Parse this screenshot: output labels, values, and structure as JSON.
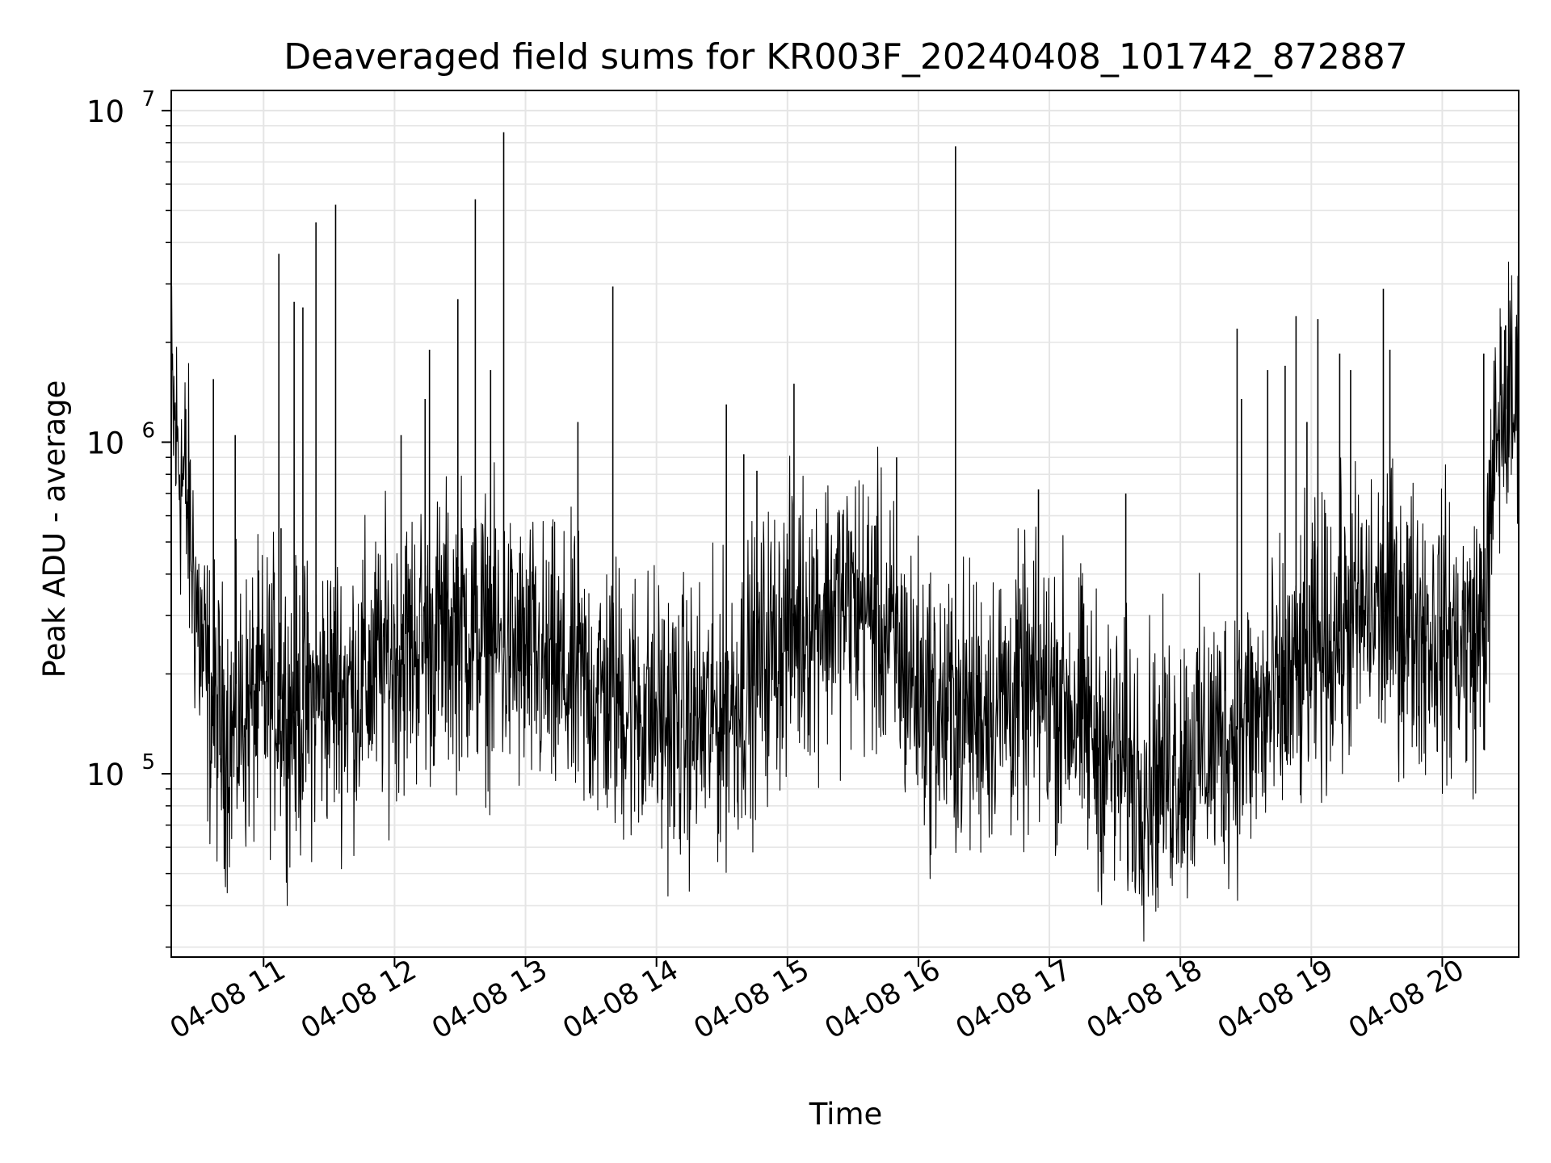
{
  "chart_data": {
    "type": "line",
    "title": "Deaveraged field sums for KR003F_20240408_101742_872887",
    "xlabel": "Time",
    "ylabel": "Peak ADU - average",
    "yscale": "log",
    "ylim": [
      28000,
      11500000
    ],
    "xlim": [
      "2024-04-08 10:17:42",
      "2024-04-08 20:35:00"
    ],
    "x_ticks": [
      {
        "value": "2024-04-08 11:00",
        "label": "04-08 11"
      },
      {
        "value": "2024-04-08 12:00",
        "label": "04-08 12"
      },
      {
        "value": "2024-04-08 13:00",
        "label": "04-08 13"
      },
      {
        "value": "2024-04-08 14:00",
        "label": "04-08 14"
      },
      {
        "value": "2024-04-08 15:00",
        "label": "04-08 15"
      },
      {
        "value": "2024-04-08 16:00",
        "label": "04-08 16"
      },
      {
        "value": "2024-04-08 17:00",
        "label": "04-08 17"
      },
      {
        "value": "2024-04-08 18:00",
        "label": "04-08 18"
      },
      {
        "value": "2024-04-08 19:00",
        "label": "04-08 19"
      },
      {
        "value": "2024-04-08 20:00",
        "label": "04-08 20"
      }
    ],
    "y_ticks": [
      {
        "value": 100000,
        "base": "10",
        "exp": "5"
      },
      {
        "value": 1000000,
        "base": "10",
        "exp": "6"
      },
      {
        "value": 10000000,
        "base": "10",
        "exp": "7"
      }
    ],
    "grid": true,
    "line_color": "#000000",
    "grid_color": "#e5e5e5",
    "series": [
      {
        "x": [
          "2024-04-08 10:18",
          "2024-04-08 10:20",
          "2024-04-08 10:22",
          "2024-04-08 10:25",
          "2024-04-08 10:28",
          "2024-04-08 10:31",
          "2024-04-08 10:35",
          "2024-04-08 10:40",
          "2024-04-08 10:45",
          "2024-04-08 10:50",
          "2024-04-08 10:55",
          "2024-04-08 11:00",
          "2024-04-08 11:05",
          "2024-04-08 11:10",
          "2024-04-08 11:15",
          "2024-04-08 11:20",
          "2024-04-08 11:25",
          "2024-04-08 11:30",
          "2024-04-08 11:40",
          "2024-04-08 11:50",
          "2024-04-08 12:00",
          "2024-04-08 12:10",
          "2024-04-08 12:20",
          "2024-04-08 12:30",
          "2024-04-08 12:40",
          "2024-04-08 12:50",
          "2024-04-08 13:00",
          "2024-04-08 13:10",
          "2024-04-08 13:20",
          "2024-04-08 13:30",
          "2024-04-08 13:40",
          "2024-04-08 13:50",
          "2024-04-08 14:00",
          "2024-04-08 14:10",
          "2024-04-08 14:20",
          "2024-04-08 14:30",
          "2024-04-08 14:40",
          "2024-04-08 14:50",
          "2024-04-08 15:00",
          "2024-04-08 15:10",
          "2024-04-08 15:20",
          "2024-04-08 15:30",
          "2024-04-08 15:40",
          "2024-04-08 15:50",
          "2024-04-08 16:00",
          "2024-04-08 16:10",
          "2024-04-08 16:20",
          "2024-04-08 16:30",
          "2024-04-08 16:40",
          "2024-04-08 16:50",
          "2024-04-08 17:00",
          "2024-04-08 17:10",
          "2024-04-08 17:20",
          "2024-04-08 17:30",
          "2024-04-08 17:40",
          "2024-04-08 17:50",
          "2024-04-08 18:00",
          "2024-04-08 18:10",
          "2024-04-08 18:20",
          "2024-04-08 18:30",
          "2024-04-08 18:40",
          "2024-04-08 18:50",
          "2024-04-08 19:00",
          "2024-04-08 19:10",
          "2024-04-08 19:20",
          "2024-04-08 19:30",
          "2024-04-08 19:40",
          "2024-04-08 19:50",
          "2024-04-08 20:00",
          "2024-04-08 20:10",
          "2024-04-08 20:15",
          "2024-04-08 20:20",
          "2024-04-08 20:25",
          "2024-04-08 20:30",
          "2024-04-08 20:34"
        ],
        "y": [
          1300000,
          1000000,
          850000,
          650000,
          400000,
          250000,
          170000,
          140000,
          130000,
          150000,
          160000,
          170000,
          180000,
          160000,
          150000,
          160000,
          170000,
          180000,
          180000,
          200000,
          230000,
          250000,
          260000,
          280000,
          260000,
          240000,
          220000,
          200000,
          190000,
          180000,
          170000,
          160000,
          150000,
          140000,
          140000,
          150000,
          180000,
          230000,
          270000,
          300000,
          320000,
          330000,
          300000,
          230000,
          180000,
          150000,
          150000,
          160000,
          170000,
          170000,
          180000,
          160000,
          130000,
          110000,
          100000,
          100000,
          110000,
          120000,
          130000,
          140000,
          150000,
          180000,
          220000,
          260000,
          290000,
          310000,
          300000,
          280000,
          260000,
          250000,
          250000,
          300000,
          1100000,
          1300000,
          1250000
        ]
      }
    ],
    "spikes": [
      {
        "x": "2024-04-08 10:37",
        "y": 1550000
      },
      {
        "x": "2024-04-08 10:47",
        "y": 1050000
      },
      {
        "x": "2024-04-08 11:07",
        "y": 3700000
      },
      {
        "x": "2024-04-08 11:08",
        "y": 550000
      },
      {
        "x": "2024-04-08 11:14",
        "y": 2650000
      },
      {
        "x": "2024-04-08 11:18",
        "y": 2550000
      },
      {
        "x": "2024-04-08 11:24",
        "y": 4600000
      },
      {
        "x": "2024-04-08 11:33",
        "y": 5200000
      },
      {
        "x": "2024-04-08 12:03",
        "y": 1050000
      },
      {
        "x": "2024-04-08 12:14",
        "y": 1350000
      },
      {
        "x": "2024-04-08 12:16",
        "y": 1900000
      },
      {
        "x": "2024-04-08 12:29",
        "y": 2700000
      },
      {
        "x": "2024-04-08 12:37",
        "y": 5400000
      },
      {
        "x": "2024-04-08 12:44",
        "y": 1650000
      },
      {
        "x": "2024-04-08 12:50",
        "y": 8600000
      },
      {
        "x": "2024-04-08 13:24",
        "y": 1150000
      },
      {
        "x": "2024-04-08 13:40",
        "y": 2950000
      },
      {
        "x": "2024-04-08 14:32",
        "y": 1300000
      },
      {
        "x": "2024-04-08 14:40",
        "y": 920000
      },
      {
        "x": "2024-04-08 14:46",
        "y": 820000
      },
      {
        "x": "2024-04-08 15:03",
        "y": 1500000
      },
      {
        "x": "2024-04-08 15:40",
        "y": 560000
      },
      {
        "x": "2024-04-08 15:50",
        "y": 900000
      },
      {
        "x": "2024-04-08 16:17",
        "y": 7800000
      },
      {
        "x": "2024-04-08 16:55",
        "y": 720000
      },
      {
        "x": "2024-04-08 17:35",
        "y": 700000
      },
      {
        "x": "2024-04-08 18:26",
        "y": 2200000
      },
      {
        "x": "2024-04-08 18:28",
        "y": 1350000
      },
      {
        "x": "2024-04-08 18:40",
        "y": 1650000
      },
      {
        "x": "2024-04-08 18:48",
        "y": 1700000
      },
      {
        "x": "2024-04-08 18:53",
        "y": 2400000
      },
      {
        "x": "2024-04-08 18:58",
        "y": 1150000
      },
      {
        "x": "2024-04-08 19:03",
        "y": 2350000
      },
      {
        "x": "2024-04-08 19:13",
        "y": 1850000
      },
      {
        "x": "2024-04-08 19:18",
        "y": 1650000
      },
      {
        "x": "2024-04-08 19:33",
        "y": 2900000
      },
      {
        "x": "2024-04-08 19:36",
        "y": 1900000
      },
      {
        "x": "2024-04-08 20:19",
        "y": 1850000
      },
      {
        "x": "2024-04-08 20:29",
        "y": 2250000
      }
    ]
  }
}
